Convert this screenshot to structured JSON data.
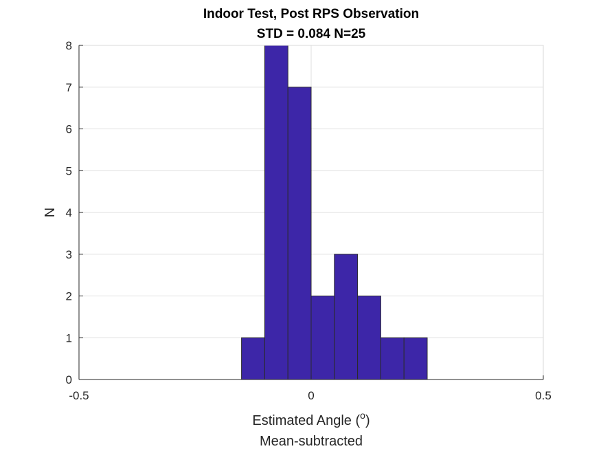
{
  "chart_data": {
    "type": "bar",
    "title": "Indoor Test, Post RPS Observation",
    "subtitle": "STD = 0.084 N=25",
    "xlabel_main": "Estimated Angle (",
    "xlabel_sup": "o",
    "xlabel_close": ")",
    "xlabel_sub": "Mean-subtracted",
    "ylabel": "N",
    "xlim": [
      -0.5,
      0.5
    ],
    "ylim": [
      0,
      8
    ],
    "x_ticks": [
      -0.5,
      0,
      0.5
    ],
    "x_tick_labels": [
      "-0.5",
      "0",
      "0.5"
    ],
    "y_ticks": [
      0,
      1,
      2,
      3,
      4,
      5,
      6,
      7,
      8
    ],
    "y_tick_labels": [
      "0",
      "1",
      "2",
      "3",
      "4",
      "5",
      "6",
      "7",
      "8"
    ],
    "grid": true,
    "bar_color": "#3d26a8",
    "bar_edge_color": "#2b2b2b",
    "bin_edges": [
      -0.15,
      -0.1,
      -0.05,
      0.0,
      0.05,
      0.1,
      0.15,
      0.2,
      0.25
    ],
    "values": [
      1,
      8,
      7,
      2,
      3,
      2,
      1,
      1
    ]
  }
}
